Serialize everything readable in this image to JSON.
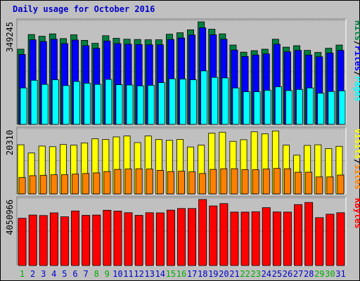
{
  "chart_data": {
    "type": "bar",
    "title": "Daily usage for October 2016",
    "days": [
      "1",
      "2",
      "3",
      "4",
      "5",
      "6",
      "7",
      "8",
      "9",
      "10",
      "11",
      "12",
      "13",
      "14",
      "15",
      "16",
      "17",
      "18",
      "19",
      "20",
      "21",
      "22",
      "23",
      "24",
      "25",
      "26",
      "27",
      "28",
      "29",
      "30",
      "31"
    ],
    "weekend_days": [
      "1",
      "8",
      "9",
      "15",
      "16",
      "22",
      "23",
      "29",
      "30"
    ],
    "panels": [
      {
        "name": "pages-files-hits",
        "max_label": "349245",
        "ymax": 349245,
        "series": [
          {
            "name": "Hits",
            "color": "#008040",
            "values": [
              256000,
              306000,
              300000,
              308000,
              292000,
              305000,
              286000,
              276000,
              302000,
              293000,
              290000,
              289000,
              288000,
              288000,
              307000,
              312000,
              322000,
              349000,
              324000,
              308000,
              270000,
              246000,
              251000,
              256000,
              290000,
              263000,
              268000,
              252000,
              245000,
              259000,
              270000
            ]
          },
          {
            "name": "Files",
            "color": "#0000ff",
            "values": [
              238000,
              288000,
              282000,
              290000,
              275000,
              287000,
              268000,
              259000,
              284000,
              275000,
              273000,
              272000,
              271000,
              271000,
              289000,
              294000,
              304000,
              329000,
              305000,
              290000,
              253000,
              231000,
              236000,
              240000,
              273000,
              247000,
              252000,
              236000,
              230000,
              243000,
              252000
            ]
          },
          {
            "name": "Pages",
            "color": "#00ffff",
            "values": [
              124000,
              150000,
              136000,
              152000,
              132000,
              146000,
              140000,
              136000,
              153000,
              135000,
              134000,
              131000,
              133000,
              142000,
              155000,
              154000,
              152000,
              182000,
              160000,
              158000,
              124000,
              111000,
              111000,
              116000,
              128000,
              115000,
              119000,
              124000,
              106000,
              112000,
              114000
            ]
          }
        ]
      },
      {
        "name": "sites-visits",
        "max_label": "20310",
        "ymax": 20310,
        "series": [
          {
            "name": "Visits",
            "color": "#ffff00",
            "values": [
              15600,
              13000,
              15200,
              15000,
              15700,
              15500,
              16200,
              17500,
              17300,
              18100,
              18400,
              16300,
              18400,
              17300,
              17000,
              17300,
              14900,
              15500,
              19300,
              19600,
              16700,
              17200,
              19700,
              19100,
              20000,
              15500,
              12300,
              15400,
              15600,
              14400,
              15100
            ]
          },
          {
            "name": "Sites",
            "color": "#ff8000",
            "values": [
              5200,
              5800,
              5900,
              6100,
              6100,
              6300,
              6500,
              6700,
              7100,
              7800,
              7900,
              8000,
              7900,
              7500,
              7100,
              7200,
              7000,
              6500,
              7800,
              8000,
              8000,
              7700,
              7700,
              7900,
              8100,
              8000,
              6900,
              6900,
              5400,
              5400,
              6000
            ]
          }
        ]
      },
      {
        "name": "kbytes",
        "max_label": "4050966",
        "ymax": 4050966,
        "series": [
          {
            "name": "KBytes",
            "color": "#ff0000",
            "values": [
              2900000,
              3100000,
              3070000,
              3230000,
              2990000,
              3350000,
              3080000,
              3100000,
              3390000,
              3340000,
              3240000,
              3080000,
              3240000,
              3230000,
              3400000,
              3500000,
              3500000,
              4050000,
              3660000,
              3800000,
              3280000,
              3280000,
              3300000,
              3550000,
              3290000,
              3280000,
              3740000,
              3870000,
              2940000,
              3150000,
              3240000
            ]
          }
        ]
      }
    ],
    "right_labels": {
      "top": [
        {
          "text": "Hits",
          "color": "#008040"
        },
        {
          "text": "/",
          "color": "#000000"
        },
        {
          "text": "Files",
          "color": "#0000ff"
        },
        {
          "text": "/",
          "color": "#000000"
        },
        {
          "text": "Pages",
          "color": "#00ffff"
        }
      ],
      "mid": [
        {
          "text": "Visits",
          "color": "#ffff00"
        },
        {
          "text": "/",
          "color": "#000000"
        },
        {
          "text": "Sites",
          "color": "#ff8000"
        }
      ],
      "bot": [
        {
          "text": "KBytes",
          "color": "#ff0000"
        }
      ]
    },
    "colors": {
      "background": "#c0c0c0",
      "panel": "#c0c0c0",
      "title": "#0000cc",
      "weekday": "#0000cc",
      "weekend": "#00aa00"
    },
    "grid": true
  }
}
